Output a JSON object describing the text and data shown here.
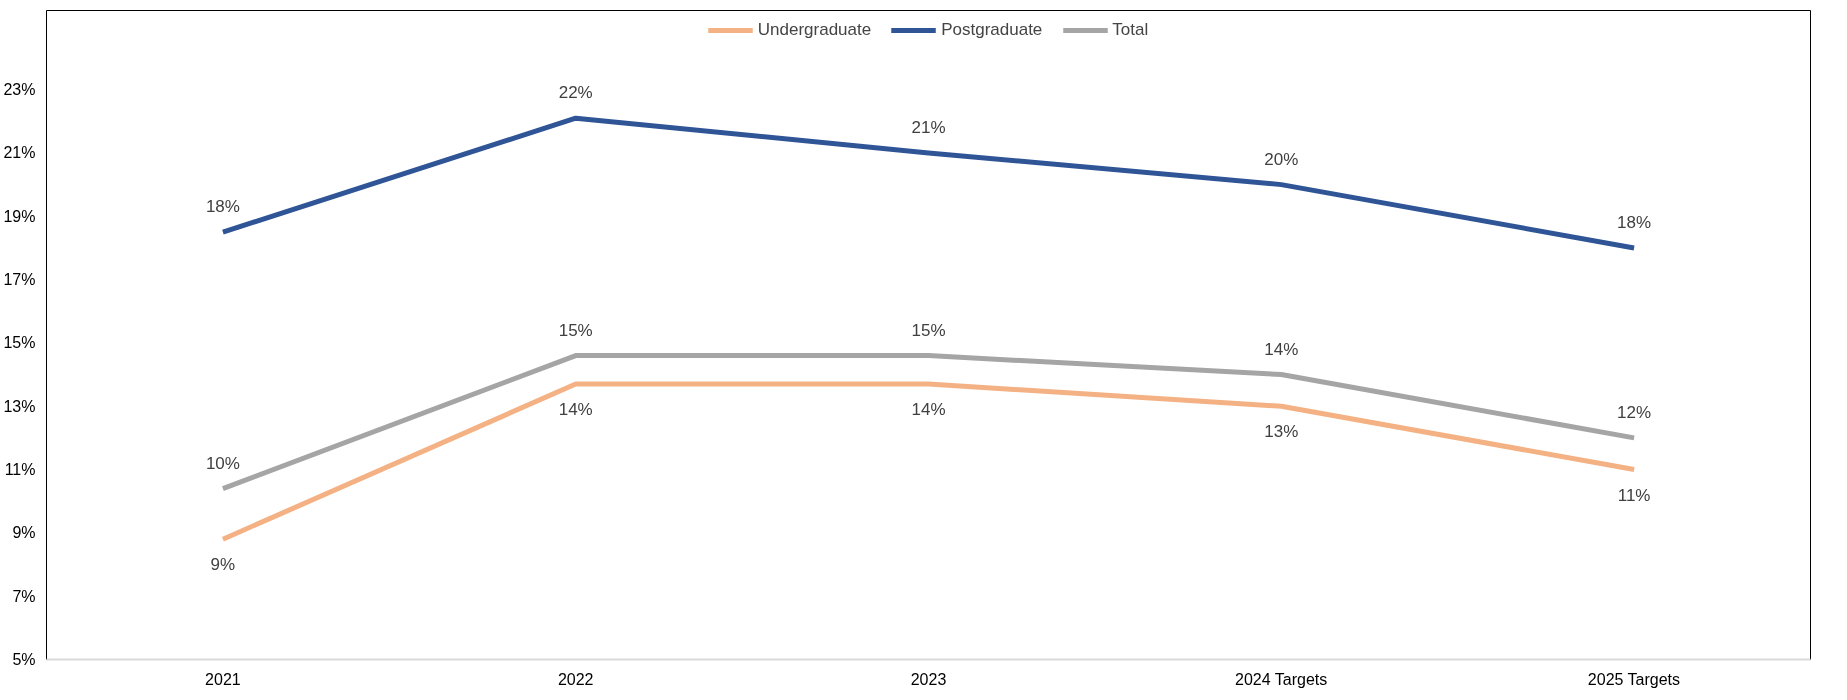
{
  "chart_data": {
    "type": "line",
    "categories": [
      "2021",
      "2022",
      "2023",
      "2024 Targets",
      "2025 Targets"
    ],
    "series": [
      {
        "name": "Undergraduate",
        "color": "#f4b183",
        "values": [
          8.8,
          13.7,
          13.7,
          13.0,
          11.0
        ],
        "value_labels": [
          "9%",
          "14%",
          "14%",
          "13%",
          "11%"
        ]
      },
      {
        "name": "Postgraduate",
        "color": "#2f5597",
        "values": [
          18.5,
          22.1,
          21.0,
          20.0,
          18.0
        ],
        "value_labels": [
          "18%",
          "22%",
          "21%",
          "20%",
          "18%"
        ]
      },
      {
        "name": "Total",
        "color": "#a5a5a5",
        "values": [
          10.4,
          14.6,
          14.6,
          14.0,
          12.0
        ],
        "value_labels": [
          "10%",
          "15%",
          "15%",
          "14%",
          "12%"
        ]
      }
    ],
    "ylim": [
      5,
      25.5
    ],
    "yticks": [
      {
        "value": 5,
        "label": "5%"
      },
      {
        "value": 7,
        "label": "7%"
      },
      {
        "value": 9,
        "label": "9%"
      },
      {
        "value": 11,
        "label": "11%"
      },
      {
        "value": 13,
        "label": "13%"
      },
      {
        "value": 15,
        "label": "15%"
      },
      {
        "value": 17,
        "label": "17%"
      },
      {
        "value": 19,
        "label": "19%"
      },
      {
        "value": 21,
        "label": "21%"
      },
      {
        "value": 23,
        "label": "23%"
      }
    ],
    "grid": false,
    "legend": "top",
    "marker": "none",
    "line_style": "solid"
  }
}
